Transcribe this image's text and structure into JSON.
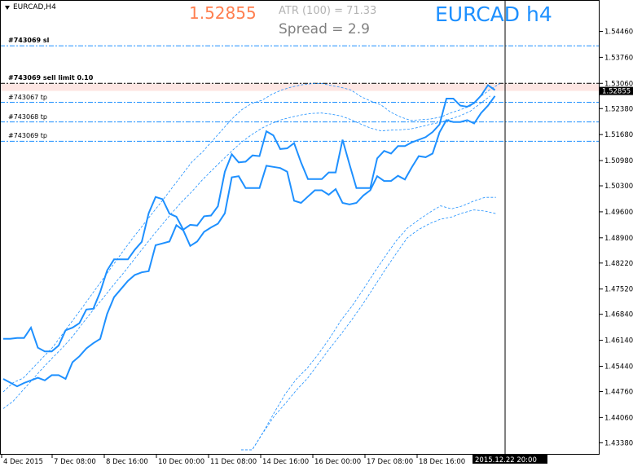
{
  "header": {
    "symbol": "EURCAD,H4",
    "bid": "1.52855",
    "atr": "ATR (100) =  71.33",
    "spread": "Spread  =  2.9",
    "title": "EURCAD h4"
  },
  "orders": [
    {
      "label": "#743069 sl",
      "price": 1.5407,
      "style": "sl"
    },
    {
      "label": "#743069 sell limit 0.10",
      "price": 1.5306,
      "style": "pending"
    },
    {
      "label": "#743067 tp",
      "price": 1.5255,
      "style": "tp"
    },
    {
      "label": "#743068 tp",
      "price": 1.5202,
      "style": "tp"
    },
    {
      "label": "#743069 tp",
      "price": 1.515,
      "style": "tp"
    }
  ],
  "current_price_label": "1.52855",
  "time_highlight_label": "2015.12.22 20:00",
  "colors": {
    "ma": "#1e90ff",
    "band": "#1e90ff",
    "tp_line": "#1e90ff",
    "sl_line": "#1e90ff",
    "pending_line": "#000000",
    "zone": "#fde6e3",
    "axis": "#000000",
    "bid_color": "#ff7f50",
    "title_color": "#1e90ff"
  },
  "chart_data": {
    "type": "line",
    "y_ticks": [
      "1.54460",
      "1.53760",
      "1.53060",
      "1.52380",
      "1.51680",
      "1.50980",
      "1.50300",
      "1.49600",
      "1.48900",
      "1.48220",
      "1.47520",
      "1.46840",
      "1.46140",
      "1.45440",
      "1.44760",
      "1.44060",
      "1.43380"
    ],
    "x_labels": [
      "4 Dec 2015",
      "7 Dec 08:00",
      "8 Dec 16:00",
      "10 Dec 00:00",
      "11 Dec 08:00",
      "14 Dec 16:00",
      "16 Dec 00:00",
      "17 Dec 08:00",
      "18 Dec 16:00"
    ],
    "ylim": [
      1.4319,
      1.5469
    ],
    "series": [
      {
        "values": [
          1.4618,
          1.4618,
          1.462,
          1.462,
          1.4648,
          1.4594,
          1.4584,
          1.4584,
          1.46,
          1.4641,
          1.4648,
          1.466,
          1.4697,
          1.4699,
          1.4744,
          1.4802,
          1.4832,
          1.4832,
          1.4832,
          1.4858,
          1.4879,
          1.4956,
          1.5,
          1.4994,
          1.4955,
          1.4947,
          1.4912,
          1.4925,
          1.4923,
          1.4948,
          1.495,
          1.4975,
          1.5068,
          1.5115,
          1.5093,
          1.5095,
          1.5112,
          1.511,
          1.5177,
          1.5166,
          1.5129,
          1.5131,
          1.5145,
          1.5093,
          1.5048,
          1.5048,
          1.5048,
          1.5066,
          1.5066,
          1.5154,
          1.5088,
          1.5024,
          1.5024,
          1.5024,
          1.5104,
          1.5124,
          1.5117,
          1.5137,
          1.5137,
          1.5147,
          1.5154,
          1.5161,
          1.5175,
          1.5195,
          1.5265,
          1.5265,
          1.5246,
          1.5243,
          1.5253,
          1.5273,
          1.5301,
          1.5288
        ]
      },
      {
        "values": [
          1.451,
          1.45,
          1.449,
          1.4499,
          1.4506,
          1.4513,
          1.4506,
          1.452,
          1.452,
          1.451,
          1.4555,
          1.4571,
          1.4592,
          1.4606,
          1.4618,
          1.4685,
          1.473,
          1.4752,
          1.4774,
          1.479,
          1.4797,
          1.48,
          1.487,
          1.4875,
          1.488,
          1.4924,
          1.491,
          1.4868,
          1.488,
          1.4906,
          1.4918,
          1.4928,
          1.4956,
          1.5053,
          1.5056,
          1.5024,
          1.5024,
          1.5024,
          1.5084,
          1.5081,
          1.5078,
          1.5068,
          1.499,
          1.4984,
          1.5001,
          1.5018,
          1.5018,
          1.5006,
          1.5021,
          1.4984,
          1.498,
          1.4984,
          1.5004,
          1.5018,
          1.5056,
          1.5043,
          1.5043,
          1.5057,
          1.5047,
          1.508,
          1.511,
          1.5107,
          1.5117,
          1.5174,
          1.5207,
          1.5202,
          1.5202,
          1.5207,
          1.5198,
          1.5226,
          1.5246,
          1.5272
        ]
      },
      {
        "values": [
          1.4475,
          1.45,
          1.4512,
          1.454,
          1.4568,
          1.4596,
          1.4632,
          1.4668,
          1.4704,
          1.4741,
          1.4778,
          1.4815,
          1.4852,
          1.4888,
          1.4922,
          1.4956,
          1.499,
          1.5025,
          1.506,
          1.5095,
          1.512,
          1.515,
          1.518,
          1.521,
          1.5235,
          1.5252,
          1.526,
          1.5276,
          1.5288,
          1.5296,
          1.5302,
          1.5305,
          1.5306,
          1.53,
          1.5295,
          1.5288,
          1.527,
          1.5258,
          1.5248,
          1.5228,
          1.5215,
          1.5206,
          1.5208,
          1.521,
          1.5215,
          1.5226,
          1.5235,
          1.5245,
          1.527,
          1.529,
          1.5306
        ]
      },
      {
        "values": [
          1.443,
          1.445,
          1.448,
          1.451,
          1.454,
          1.4568,
          1.4595,
          1.4625,
          1.466,
          1.4694,
          1.4726,
          1.476,
          1.4792,
          1.4826,
          1.486,
          1.4894,
          1.4926,
          1.4958,
          1.4988,
          1.5015,
          1.5045,
          1.5072,
          1.5098,
          1.5124,
          1.5148,
          1.5168,
          1.5185,
          1.5198,
          1.5208,
          1.5215,
          1.5221,
          1.5225,
          1.5226,
          1.5223,
          1.5218,
          1.5208,
          1.5196,
          1.5185,
          1.5178,
          1.518,
          1.5181,
          1.5183,
          1.5189,
          1.5196,
          1.5201,
          1.521,
          1.5219,
          1.5231,
          1.5252,
          1.5272
        ]
      },
      {
        "values": [
          1.4319,
          1.4319,
          1.4367,
          1.442,
          1.447,
          1.451,
          1.454,
          1.4578,
          1.462,
          1.4667,
          1.4706,
          1.475,
          1.4796,
          1.484,
          1.4882,
          1.4916,
          1.4938,
          1.4958,
          1.4976,
          1.4968,
          1.4976,
          1.4989,
          1.4999,
          1.4999
        ]
      },
      {
        "values": [
          1.4319,
          1.4319,
          1.4366,
          1.441,
          1.4444,
          1.448,
          1.4512,
          1.4552,
          1.4592,
          1.463,
          1.467,
          1.4712,
          1.4758,
          1.4804,
          1.4848,
          1.489,
          1.4912,
          1.4928,
          1.494,
          1.4946,
          1.4957,
          1.4965,
          1.4962,
          1.4955
        ]
      }
    ]
  }
}
